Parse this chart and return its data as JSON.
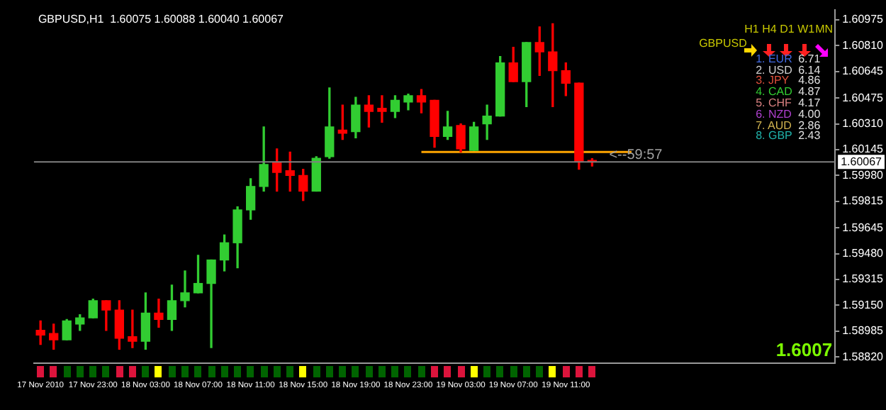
{
  "chart_data": {
    "type": "candlestick",
    "title": "GBPUSD,H1  1.60075 1.60088 1.60040 1.60067",
    "categories": [
      "17 Nov 2010",
      null,
      null,
      null,
      "17 Nov 23:00",
      null,
      null,
      null,
      "18 Nov 03:00",
      null,
      null,
      null,
      "18 Nov 07:00",
      null,
      null,
      null,
      "18 Nov 11:00",
      null,
      null,
      null,
      "18 Nov 15:00",
      null,
      null,
      null,
      "18 Nov 19:00",
      null,
      null,
      null,
      "18 Nov 23:00",
      null,
      null,
      null,
      "19 Nov 03:00",
      null,
      null,
      null,
      "19 Nov 07:00",
      null,
      null,
      null,
      "19 Nov 11:00",
      null,
      null,
      null,
      null,
      null,
      null,
      null,
      null,
      null,
      null,
      null,
      null,
      null,
      null,
      null,
      null,
      null,
      null,
      null,
      null
    ],
    "ohlc": [
      [
        1.5899,
        1.5905,
        1.589,
        1.5896
      ],
      [
        1.5897,
        1.5903,
        1.5887,
        1.5893
      ],
      [
        1.5893,
        1.5906,
        1.5893,
        1.5905
      ],
      [
        1.5903,
        1.5909,
        1.5899,
        1.5907
      ],
      [
        1.5907,
        1.5919,
        1.5907,
        1.5918
      ],
      [
        1.5918,
        1.5918,
        1.5899,
        1.5912
      ],
      [
        1.5912,
        1.5918,
        1.5887,
        1.5894
      ],
      [
        1.5895,
        1.5912,
        1.5888,
        1.5892
      ],
      [
        1.5892,
        1.5923,
        1.5887,
        1.591
      ],
      [
        1.591,
        1.5919,
        1.5901,
        1.5906
      ],
      [
        1.5906,
        1.5928,
        1.5899,
        1.5918
      ],
      [
        1.5918,
        1.5937,
        1.5914,
        1.5923
      ],
      [
        1.5923,
        1.5947,
        1.5923,
        1.5929
      ],
      [
        1.5929,
        1.5944,
        1.5888,
        1.5944
      ],
      [
        1.5944,
        1.596,
        1.5937,
        1.5955
      ],
      [
        1.5955,
        1.5978,
        1.5939,
        1.5976
      ],
      [
        1.5976,
        1.5996,
        1.597,
        1.5991
      ],
      [
        1.5991,
        1.6029,
        1.5988,
        1.6005
      ],
      [
        1.6006,
        1.6015,
        1.5988,
        1.6
      ],
      [
        1.6001,
        1.6013,
        1.5988,
        1.5998
      ],
      [
        1.5998,
        1.6002,
        1.5982,
        1.5988
      ],
      [
        1.5988,
        1.601,
        1.5988,
        1.6009
      ],
      [
        1.601,
        1.6054,
        1.6009,
        1.6029
      ],
      [
        1.6027,
        1.6043,
        1.6021,
        1.6025
      ],
      [
        1.6026,
        1.6048,
        1.6022,
        1.6043
      ],
      [
        1.6043,
        1.6049,
        1.6029,
        1.6039
      ],
      [
        1.6041,
        1.6049,
        1.6032,
        1.6039
      ],
      [
        1.6039,
        1.6049,
        1.6035,
        1.6046
      ],
      [
        1.6045,
        1.605,
        1.604,
        1.6049
      ],
      [
        1.6049,
        1.6053,
        1.6038,
        1.6045
      ],
      [
        1.6046,
        1.6046,
        1.6016,
        1.6023
      ],
      [
        1.6023,
        1.6039,
        1.6021,
        1.6029
      ],
      [
        1.603,
        1.6031,
        1.6013,
        1.6015
      ],
      [
        1.6014,
        1.6032,
        1.6014,
        1.6029
      ],
      [
        1.6031,
        1.6043,
        1.6021,
        1.6036
      ],
      [
        1.6036,
        1.6074,
        1.6036,
        1.607
      ],
      [
        1.607,
        1.608,
        1.6058,
        1.6058
      ],
      [
        1.6058,
        1.6083,
        1.6042,
        1.6083
      ],
      [
        1.6083,
        1.6093,
        1.6062,
        1.6077
      ],
      [
        1.6077,
        1.6095,
        1.6042,
        1.6065
      ],
      [
        1.6065,
        1.607,
        1.6049,
        1.6057
      ],
      [
        1.6057,
        1.6057,
        1.6002,
        1.6007
      ],
      [
        1.60075,
        1.60088,
        1.6004,
        1.60067
      ],
      null,
      null,
      null,
      null,
      null,
      null,
      null,
      null,
      null,
      null,
      null,
      null,
      null,
      null,
      null,
      null,
      null,
      null
    ],
    "colors": [
      "#ff0000",
      "#ff0000",
      "#32cd32",
      "#32cd32",
      "#32cd32",
      "#ff0000",
      "#ff0000",
      "#ff0000",
      "#32cd32",
      "#ff0000",
      "#32cd32",
      "#32cd32",
      "#32cd32",
      "#32cd32",
      "#32cd32",
      "#32cd32",
      "#32cd32",
      "#32cd32",
      "#ff0000",
      "#ff0000",
      "#ff0000",
      "#32cd32",
      "#32cd32",
      "#ff0000",
      "#32cd32",
      "#ff0000",
      "#ff0000",
      "#32cd32",
      "#32cd32",
      "#ff0000",
      "#ff0000",
      "#32cd32",
      "#ff0000",
      "#32cd32",
      "#32cd32",
      "#32cd32",
      "#ff0000",
      "#32cd32",
      "#ff0000",
      "#ff0000",
      "#ff0000",
      "#ff0000",
      "#ff0000",
      null,
      null,
      null,
      null,
      null,
      null,
      null,
      null,
      null,
      null,
      null,
      null,
      null,
      null,
      null,
      null,
      null,
      null
    ],
    "series": [
      {
        "type": "line",
        "color": "#ffa500",
        "values": [
          null,
          null,
          null,
          null,
          null,
          null,
          null,
          null,
          null,
          null,
          null,
          null,
          null,
          null,
          null,
          null,
          null,
          null,
          null,
          null,
          null,
          null,
          null,
          null,
          null,
          null,
          null,
          null,
          null,
          1.6013,
          1.6013,
          1.6013,
          1.6013,
          1.6013,
          1.6013,
          1.6013,
          1.6013,
          1.6013,
          1.6013,
          1.6013,
          1.6013,
          1.6013,
          1.6013,
          1.6013,
          1.6013,
          1.6013,
          null,
          null,
          null,
          null,
          null,
          null,
          null,
          null,
          null,
          null,
          null,
          null,
          null,
          null,
          null
        ]
      }
    ],
    "ylim": [
      1.5878,
      1.6104
    ],
    "yticks": [
      1.60975,
      {
        "value": 1.6081,
        "label": "1.60810"
      },
      1.60645,
      1.60475,
      {
        "value": 1.6031,
        "label": "1.60310"
      },
      1.60145,
      {
        "value": 1.5998,
        "label": "1.59980"
      },
      1.59815,
      1.59645,
      {
        "value": 1.5948,
        "label": "1.59480"
      },
      1.59315,
      {
        "value": 1.5915,
        "label": "1.59150"
      },
      1.58985,
      {
        "value": 1.5882,
        "label": "1.58820"
      }
    ],
    "ref_lines": [
      {
        "axis": "y",
        "value": 1.60067,
        "label": "1.60067",
        "color": "#808080"
      }
    ],
    "annotations": [
      {
        "text": "<--59:57",
        "y": 1.60067
      },
      "1.6007",
      "GBPUSD",
      "H1",
      "H4",
      "D1",
      "W1",
      "MN",
      "1. EUR",
      "6.71",
      "2. USD",
      "6.14",
      "3. JPY",
      "4.86",
      "4. CAD",
      "4.87",
      "5. CHF",
      "4.17",
      "6. NZD",
      "4.00",
      "7. AUD",
      "2.86",
      "8. GBP",
      "2.43"
    ],
    "grid": false,
    "legend": false
  }
}
